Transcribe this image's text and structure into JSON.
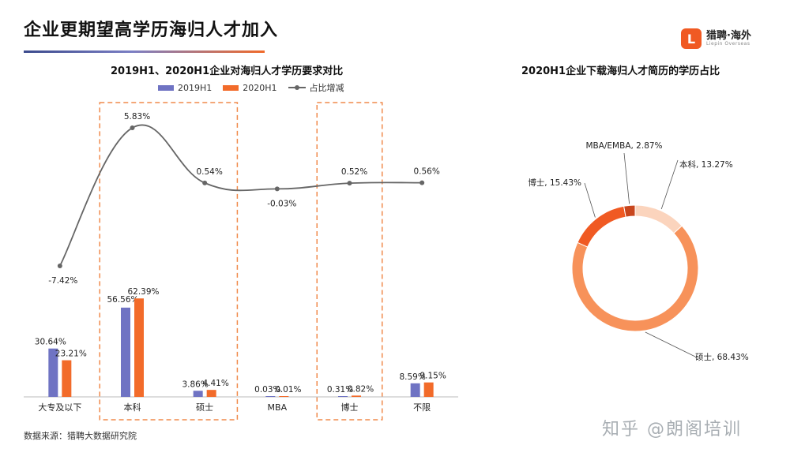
{
  "page": {
    "title": "企业更期望高学历海归人才加入",
    "brand_name": "猎聘·海外",
    "brand_sub": "Liepin Overseas",
    "source": "数据来源：猎聘大数据研究院",
    "watermark": "知乎 @朗阁培训"
  },
  "colors": {
    "series_2019": "#6f73c3",
    "series_2020": "#f26b2a",
    "line": "#666666",
    "highlight_box": "#f08a4b",
    "brand": "#f05a23"
  },
  "chart_data": [
    {
      "type": "bar",
      "title": "2019H1、2020H1企业对海归人才学历要求对比",
      "categories": [
        "大专及以下",
        "本科",
        "硕士",
        "MBA",
        "博士",
        "不限"
      ],
      "series": [
        {
          "name": "2019H1",
          "values": [
            30.64,
            56.56,
            3.86,
            0.03,
            0.31,
            8.59
          ],
          "labels": [
            "30.64%",
            "56.56%",
            "3.86%",
            "0.03%",
            "0.31%",
            "8.59%"
          ]
        },
        {
          "name": "2020H1",
          "values": [
            23.21,
            62.39,
            4.41,
            0.01,
            0.82,
            9.15
          ],
          "labels": [
            "23.21%",
            "62.39%",
            "4.41%",
            "0.01%",
            "0.82%",
            "9.15%"
          ]
        }
      ],
      "line_series": {
        "name": "占比增减",
        "values": [
          -7.42,
          5.83,
          0.54,
          -0.03,
          0.52,
          0.56
        ],
        "labels": [
          "-7.42%",
          "5.83%",
          "0.54%",
          "-0.03%",
          "0.52%",
          "0.56%"
        ]
      },
      "ylim": [
        0,
        70
      ],
      "legend": "top",
      "highlighted_categories": [
        "本科",
        "硕士",
        "博士"
      ],
      "grid": false
    },
    {
      "type": "pie",
      "donut": true,
      "title": "2020H1企业下载海归人才简历的学历占比",
      "slices": [
        {
          "label": "本科",
          "value": 13.27,
          "text": "本科, 13.27%",
          "color": "#fbd4bd"
        },
        {
          "label": "硕士",
          "value": 68.43,
          "text": "硕士, 68.43%",
          "color": "#f7925a"
        },
        {
          "label": "博士",
          "value": 15.43,
          "text": "博士, 15.43%",
          "color": "#f05a23"
        },
        {
          "label": "MBA/EMBA",
          "value": 2.87,
          "text": "MBA/EMBA, 2.87%",
          "color": "#c8461d"
        }
      ]
    }
  ]
}
